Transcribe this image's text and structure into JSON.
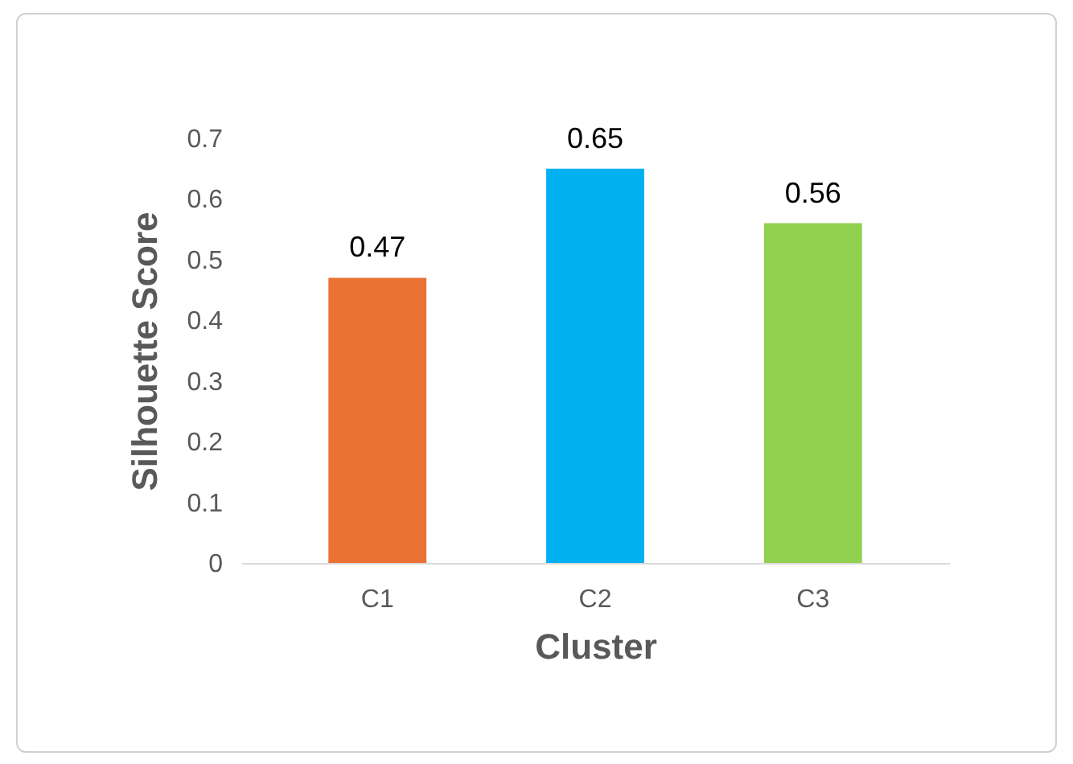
{
  "chart_data": {
    "type": "bar",
    "xlabel": "Cluster",
    "ylabel": "Silhouette Score",
    "categories": [
      "C1",
      "C2",
      "C3"
    ],
    "values": [
      0.47,
      0.65,
      0.56
    ],
    "colors": [
      "#e97132",
      "#00b0f0",
      "#92d050"
    ],
    "ylim": [
      0,
      0.7
    ],
    "yticks": [
      0,
      0.1,
      0.2,
      0.3,
      0.4,
      0.5,
      0.6,
      0.7
    ],
    "grid": false,
    "data_labels": true
  }
}
